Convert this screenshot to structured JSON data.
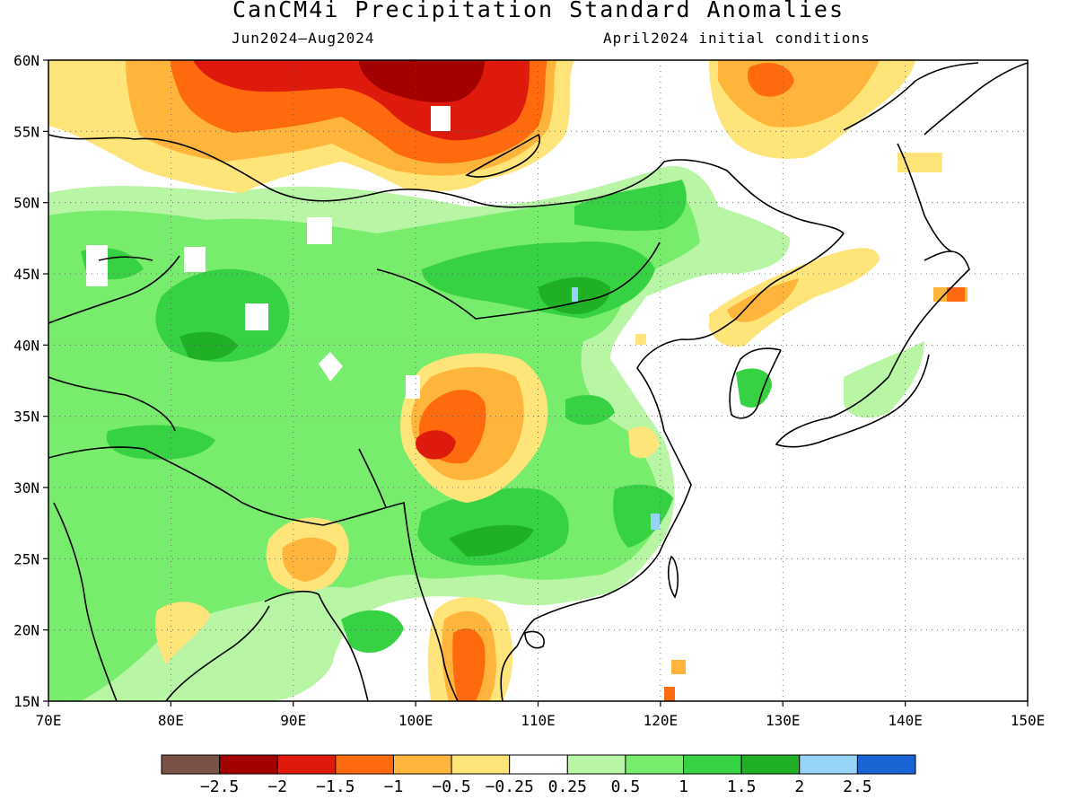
{
  "title": "CanCM4i Precipitation Standard Anomalies",
  "subtitle_left": "Jun2024–Aug2024",
  "subtitle_right": "April2024 initial conditions",
  "map": {
    "lon_range": [
      70,
      150
    ],
    "lat_range": [
      15,
      60
    ],
    "lon_ticks": [
      "70E",
      "80E",
      "90E",
      "100E",
      "110E",
      "120E",
      "130E",
      "140E",
      "150E"
    ],
    "lat_ticks": [
      "15N",
      "20N",
      "25N",
      "30N",
      "35N",
      "40N",
      "45N",
      "50N",
      "55N",
      "60N"
    ],
    "grid": "dotted"
  },
  "colorbar": {
    "colors": [
      "#7a5146",
      "#a30000",
      "#dd1a0b",
      "#ff6a0e",
      "#ffb53b",
      "#ffe47a",
      "#ffffff",
      "#b8f5a4",
      "#78ec6c",
      "#37d243",
      "#1fb026",
      "#97d3f7",
      "#1a63d5"
    ],
    "labels": [
      "−2.5",
      "−2",
      "−1.5",
      "−1",
      "−0.5",
      "−0.25",
      "0.25",
      "0.5",
      "1",
      "1.5",
      "2",
      "2.5"
    ]
  }
}
